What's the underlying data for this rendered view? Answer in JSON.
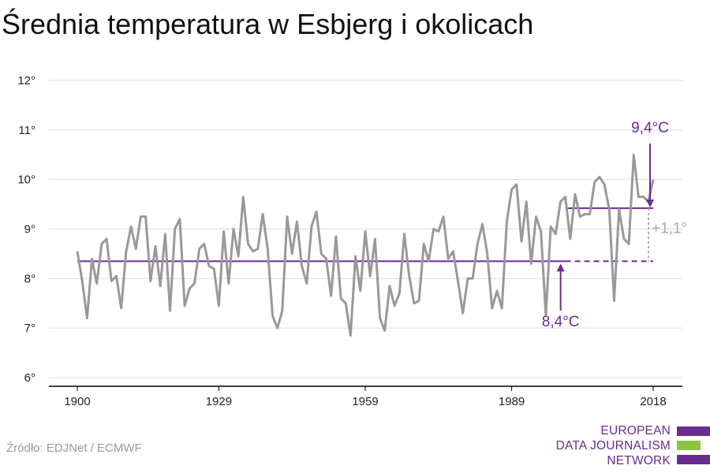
{
  "title": "Średnia temperatura w Esbjerg i okolicach",
  "source": "Źródło: EDJNet / ECMWF",
  "logo": {
    "lines": [
      "EUROPEAN",
      "DATA JOURNALISM",
      "NETWORK"
    ],
    "colors": [
      "#6a2c91",
      "#8cc63f",
      "#6a2c91"
    ]
  },
  "colors": {
    "series": "#999999",
    "accent": "#6a2c91",
    "grid": "#dddddd",
    "axis": "#000000",
    "delta": "#aaaaaa"
  },
  "chart_data": {
    "type": "line",
    "title": "Średnia temperatura w Esbjerg i okolicach",
    "xlabel": "",
    "ylabel": "",
    "xlim": [
      1900,
      2018
    ],
    "ylim": [
      6,
      12
    ],
    "x_ticks": [
      1900,
      1929,
      1959,
      1989,
      2018
    ],
    "y_ticks": [
      6,
      7,
      8,
      9,
      10,
      11,
      12
    ],
    "y_tick_labels": [
      "6°",
      "7°",
      "8°",
      "9°",
      "10°",
      "11°",
      "12°"
    ],
    "grid": true,
    "series": [
      {
        "start_year": 1900,
        "values": [
          8.55,
          7.95,
          7.2,
          8.4,
          7.9,
          8.7,
          8.8,
          7.95,
          8.05,
          7.4,
          8.55,
          9.05,
          8.6,
          9.25,
          9.25,
          7.95,
          8.65,
          7.85,
          8.9,
          7.35,
          9.0,
          9.2,
          7.45,
          7.8,
          7.9,
          8.6,
          8.7,
          8.25,
          8.2,
          7.45,
          8.95,
          7.9,
          9.0,
          8.45,
          9.65,
          8.7,
          8.55,
          8.6,
          9.3,
          8.6,
          7.25,
          7.0,
          7.35,
          9.25,
          8.5,
          9.15,
          8.25,
          7.9,
          9.05,
          9.35,
          8.5,
          8.4,
          7.65,
          8.85,
          7.6,
          7.5,
          6.85,
          8.45,
          7.75,
          8.95,
          8.05,
          8.8,
          7.2,
          6.95,
          7.85,
          7.45,
          7.7,
          8.9,
          8.05,
          7.5,
          7.55,
          8.7,
          8.35,
          9.0,
          8.95,
          9.25,
          8.4,
          8.55,
          7.95,
          7.3,
          8.0,
          8.0,
          8.7,
          9.1,
          8.5,
          7.4,
          7.75,
          7.4,
          9.15,
          9.8,
          9.9,
          8.75,
          9.55,
          8.3,
          9.25,
          8.95,
          7.25,
          9.05,
          8.9,
          9.55,
          9.65,
          8.8,
          9.7,
          9.25,
          9.3,
          9.3,
          9.95,
          10.05,
          9.9,
          9.4,
          7.55,
          9.4,
          8.8,
          8.7,
          10.5,
          9.65,
          9.65,
          9.55,
          10.0
        ]
      }
    ],
    "reference_lines": [
      {
        "label": "8,4°C",
        "value": 8.35,
        "from": 1900,
        "to": 2018,
        "dashed_from": 2000
      },
      {
        "label": "9,4°C",
        "value": 9.42,
        "from": 2000,
        "to": 2018
      }
    ],
    "difference_label": "+1,1°"
  }
}
